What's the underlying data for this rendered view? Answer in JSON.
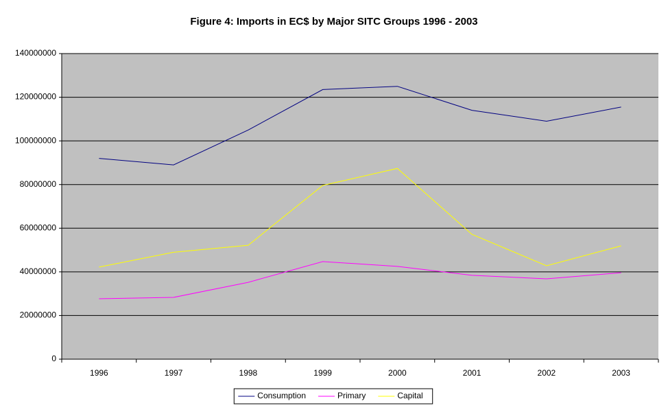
{
  "chart_data": {
    "type": "line",
    "title": "Figure 4: Imports in EC$ by Major SITC Groups 1996 - 2003",
    "categories": [
      "1996",
      "1997",
      "1998",
      "1999",
      "2000",
      "2001",
      "2002",
      "2003"
    ],
    "series": [
      {
        "name": "Consumption",
        "color": "#000080",
        "values": [
          92000000,
          89000000,
          105000000,
          123500000,
          125000000,
          114000000,
          109000000,
          115500000
        ]
      },
      {
        "name": "Primary",
        "color": "#ff00ff",
        "values": [
          27700000,
          28300000,
          35200000,
          44700000,
          42500000,
          38400000,
          36800000,
          39600000
        ]
      },
      {
        "name": "Capital",
        "color": "#ffff00",
        "values": [
          42200000,
          49000000,
          52200000,
          79600000,
          87400000,
          57200000,
          42800000,
          51900000
        ]
      }
    ],
    "ylim": [
      0,
      140000000
    ],
    "yticks": [
      0,
      20000000,
      40000000,
      60000000,
      80000000,
      100000000,
      120000000,
      140000000
    ],
    "grid": true,
    "legend": "bottom"
  }
}
